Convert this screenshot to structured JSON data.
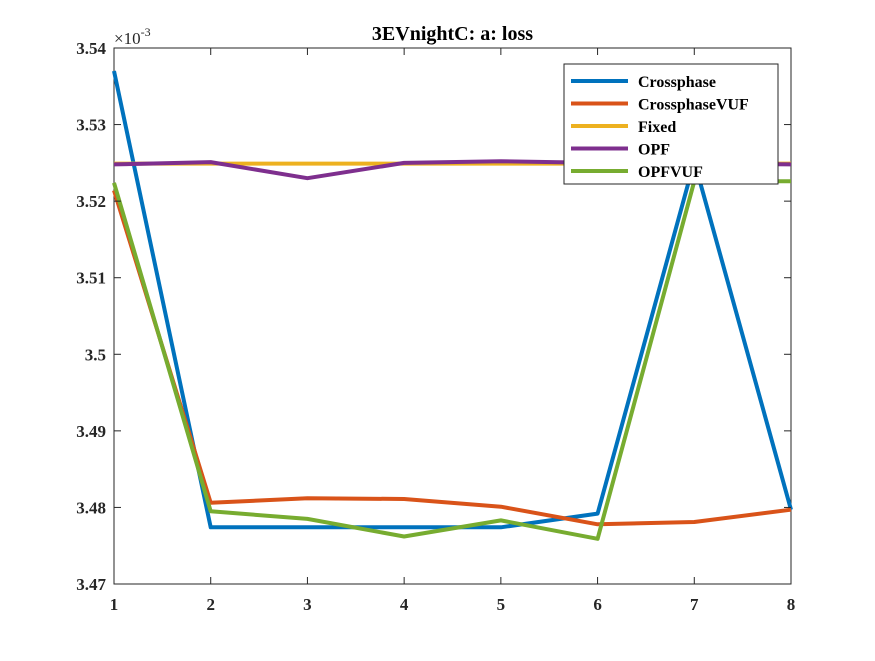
{
  "chart_data": {
    "type": "line",
    "title": "3EVnightC: a: loss",
    "xlabel": "",
    "ylabel": "",
    "exponent_label": "×10",
    "exponent_power": "-3",
    "x": [
      1,
      2,
      3,
      4,
      5,
      6,
      7,
      8
    ],
    "xlim": [
      1,
      8
    ],
    "ylim": [
      3.47,
      3.54
    ],
    "y_scale_factor": 0.001,
    "xticks": [
      "1",
      "2",
      "3",
      "4",
      "5",
      "6",
      "7",
      "8"
    ],
    "yticks": [
      "3.47",
      "3.48",
      "3.49",
      "3.5",
      "3.51",
      "3.52",
      "3.53",
      "3.54"
    ],
    "ytick_values": [
      3.47,
      3.48,
      3.49,
      3.5,
      3.51,
      3.52,
      3.53,
      3.54
    ],
    "grid": false,
    "legend_position": "top-right",
    "series": [
      {
        "name": "Crossphase",
        "color": "#0072BD",
        "values": [
          3.537,
          3.4774,
          3.4774,
          3.4774,
          3.4774,
          3.4792,
          3.5252,
          3.4797
        ]
      },
      {
        "name": "CrossphaseVUF",
        "color": "#D95319",
        "values": [
          3.5214,
          3.4806,
          3.4812,
          3.4811,
          3.4801,
          3.4778,
          3.4781,
          3.4797
        ]
      },
      {
        "name": "Fixed",
        "color": "#EDB120",
        "values": [
          3.5249,
          3.5249,
          3.5249,
          3.5249,
          3.5249,
          3.5249,
          3.5249,
          3.5249
        ]
      },
      {
        "name": "OPF",
        "color": "#7E2F8E",
        "values": [
          3.5248,
          3.5251,
          3.523,
          3.525,
          3.5252,
          3.525,
          3.5249,
          3.5248
        ]
      },
      {
        "name": "OPFVUF",
        "color": "#77AC30",
        "values": [
          3.5224,
          3.4795,
          3.4785,
          3.4762,
          3.4783,
          3.4759,
          3.5226,
          3.5226
        ]
      }
    ]
  }
}
